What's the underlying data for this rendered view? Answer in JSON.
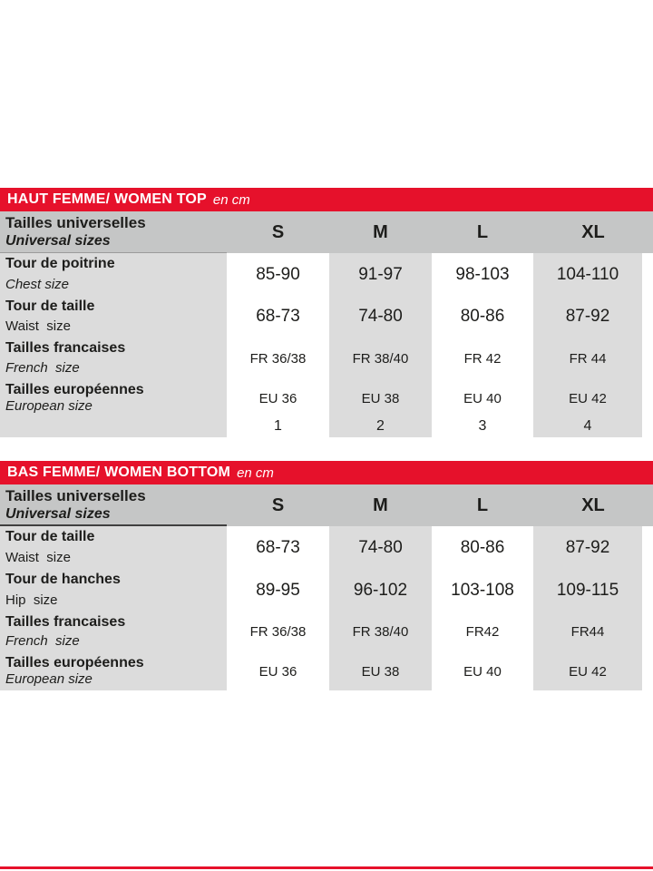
{
  "colors": {
    "accent_red": "#e6112b",
    "header_gray": "#c5c6c6",
    "cell_gray": "#dcdcdc",
    "text": "#1d1d1b"
  },
  "tables": [
    {
      "title": "HAUT FEMME/ WOMEN TOP",
      "unit": "en cm",
      "header": {
        "fr": "Tailles universelles",
        "en": "Universal sizes",
        "cols": [
          "S",
          "M",
          "L",
          "XL"
        ]
      },
      "rows": [
        {
          "fr": "Tour de poitrine",
          "en": "Chest size",
          "values": [
            "85-90",
            "91-97",
            "98-103",
            "104-110"
          ]
        },
        {
          "fr": "Tour de taille",
          "en": "Waist  size",
          "values": [
            "68-73",
            "74-80",
            "80-86",
            "87-92"
          ]
        },
        {
          "fr": "Tailles francaises",
          "en": "French  size",
          "values": [
            "FR 36/38",
            "FR 38/40",
            "FR 42",
            "FR 44"
          ]
        },
        {
          "fr": "Tailles européennes",
          "en": "European size",
          "values": [
            "EU 36",
            "EU 38",
            "EU 40",
            "EU 42"
          ]
        },
        {
          "fr": "",
          "en": "",
          "values": [
            "1",
            "2",
            "3",
            "4"
          ]
        }
      ]
    },
    {
      "title": "BAS FEMME/ WOMEN BOTTOM",
      "unit": "en cm",
      "header": {
        "fr": "Tailles universelles",
        "en": "Universal sizes",
        "cols": [
          "S",
          "M",
          "L",
          "XL"
        ]
      },
      "rows": [
        {
          "fr": "Tour de taille",
          "en": "Waist  size",
          "values": [
            "68-73",
            "74-80",
            "80-86",
            "87-92"
          ]
        },
        {
          "fr": "Tour de hanches",
          "en": "Hip  size",
          "values": [
            "89-95",
            "96-102",
            "103-108",
            "109-115"
          ]
        },
        {
          "fr": "Tailles francaises",
          "en": "French  size",
          "values": [
            "FR 36/38",
            "FR 38/40",
            "FR42",
            "FR44"
          ]
        },
        {
          "fr": "Tailles européennes",
          "en": "European size",
          "values": [
            "EU 36",
            "EU 38",
            "EU 40",
            "EU 42"
          ]
        }
      ]
    }
  ]
}
